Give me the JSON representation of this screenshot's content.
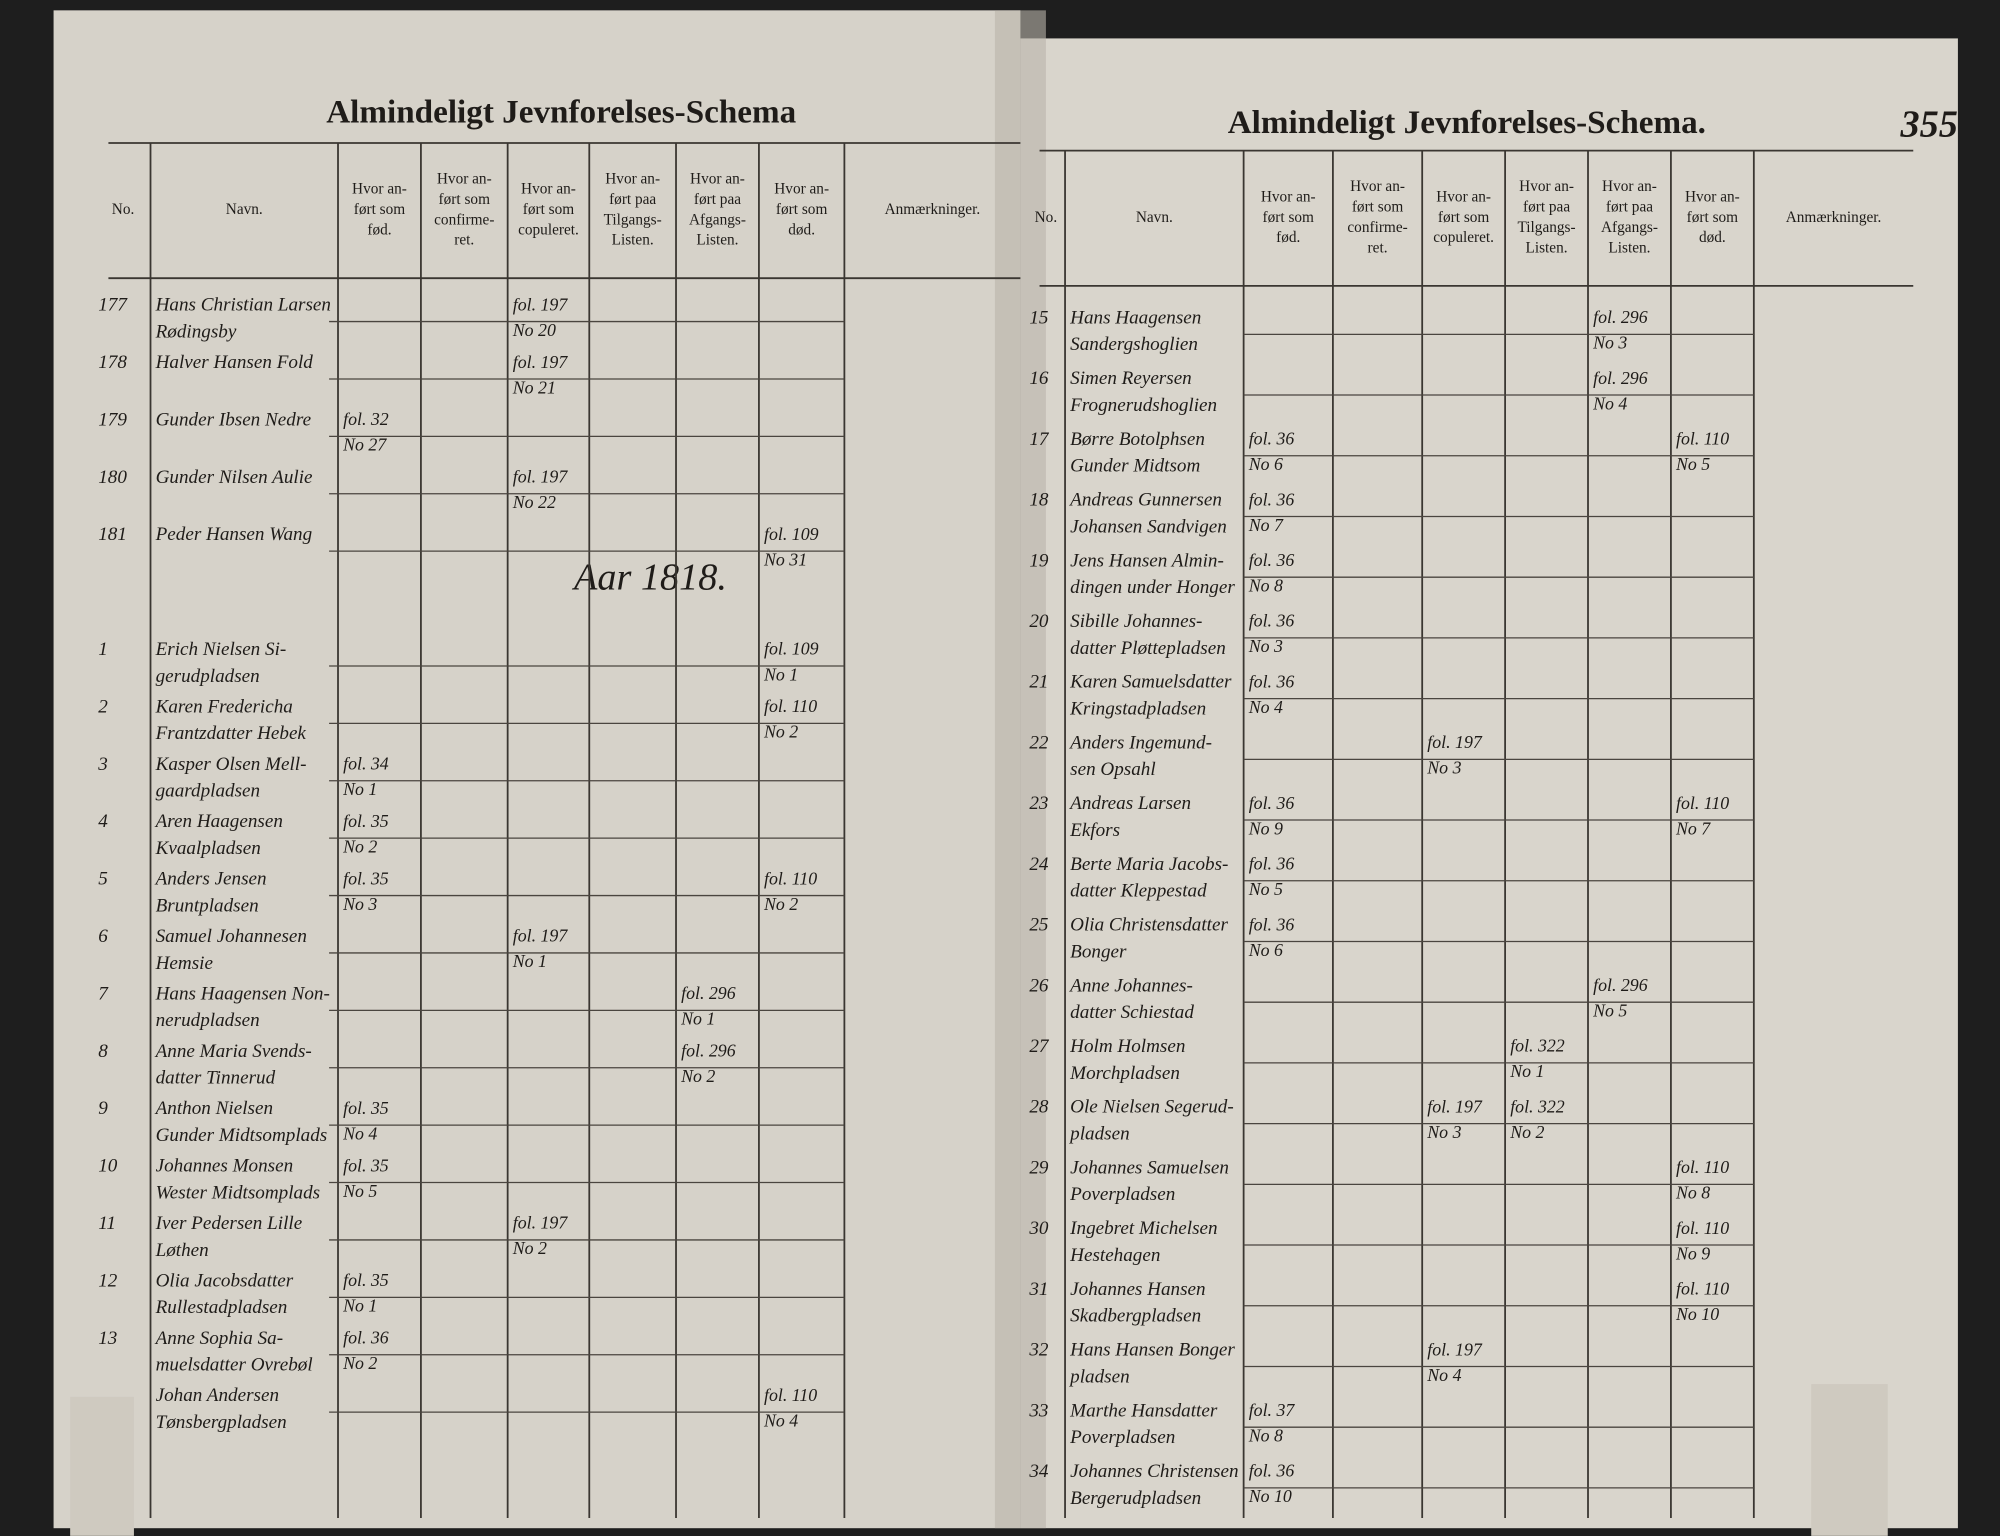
{
  "left_page": {
    "title": "Almindeligt Jevnforelses-Schema",
    "columns": [
      {
        "lines": [
          "No."
        ]
      },
      {
        "lines": [
          "Navn."
        ]
      },
      {
        "lines": [
          "Hvor an-",
          "ført som",
          "fød."
        ]
      },
      {
        "lines": [
          "Hvor an-",
          "ført som",
          "confirme-",
          "ret."
        ]
      },
      {
        "lines": [
          "Hvor an-",
          "ført som",
          "copuleret."
        ]
      },
      {
        "lines": [
          "Hvor an-",
          "ført paa",
          "Tilgangs-",
          "Listen."
        ]
      },
      {
        "lines": [
          "Hvor an-",
          "ført paa",
          "Afgangs-",
          "Listen."
        ]
      },
      {
        "lines": [
          "Hvor an-",
          "ført som",
          "død."
        ]
      },
      {
        "lines": [
          "Anmærkninger."
        ]
      }
    ],
    "year_note": "Aar 1818.",
    "rows": [
      {
        "no": "177",
        "name": [
          "Hans Christian Larsen",
          "Rødingsby"
        ],
        "entries": {
          "cop": [
            "fol. 197",
            "No 20"
          ]
        }
      },
      {
        "no": "178",
        "name": [
          "Halver Hansen Fold"
        ],
        "entries": {
          "cop": [
            "fol. 197",
            "No 21"
          ]
        }
      },
      {
        "no": "179",
        "name": [
          "Gunder Ibsen Nedre"
        ],
        "entries": {
          "fod": [
            "fol. 32",
            "No 27"
          ]
        }
      },
      {
        "no": "180",
        "name": [
          "Gunder Nilsen Aulie"
        ],
        "entries": {
          "cop": [
            "fol. 197",
            "No 22"
          ]
        }
      },
      {
        "no": "181",
        "name": [
          "Peder Hansen Wang"
        ],
        "entries": {
          "dod": [
            "fol. 109",
            "No 31"
          ]
        }
      },
      {
        "no": "1",
        "name": [
          "Erich Nielsen Si-",
          "gerudpladsen"
        ],
        "entries": {
          "dod": [
            "fol. 109",
            "No 1"
          ]
        }
      },
      {
        "no": "2",
        "name": [
          "Karen Fredericha",
          "Frantzdatter Hebek"
        ],
        "entries": {
          "dod": [
            "fol. 110",
            "No 2"
          ]
        }
      },
      {
        "no": "3",
        "name": [
          "Kasper Olsen Mell-",
          "gaardpladsen"
        ],
        "entries": {
          "fod": [
            "fol. 34",
            "No 1"
          ]
        }
      },
      {
        "no": "4",
        "name": [
          "Aren Haagensen",
          "Kvaalpladsen"
        ],
        "entries": {
          "fod": [
            "fol. 35",
            "No 2"
          ]
        }
      },
      {
        "no": "5",
        "name": [
          "Anders Jensen",
          "Bruntpladsen"
        ],
        "entries": {
          "fod": [
            "fol. 35",
            "No 3"
          ],
          "dod": [
            "fol. 110",
            "No 2"
          ]
        }
      },
      {
        "no": "6",
        "name": [
          "Samuel Johannesen",
          "Hemsie"
        ],
        "entries": {
          "cop": [
            "fol. 197",
            "No 1"
          ]
        }
      },
      {
        "no": "7",
        "name": [
          "Hans Haagensen Non-",
          "nerudpladsen"
        ],
        "entries": {
          "afg": [
            "fol. 296",
            "No 1"
          ]
        }
      },
      {
        "no": "8",
        "name": [
          "Anne Maria Svends-",
          "datter Tinnerud"
        ],
        "entries": {
          "afg": [
            "fol. 296",
            "No 2"
          ]
        }
      },
      {
        "no": "9",
        "name": [
          "Anthon Nielsen",
          "Gunder Midtsomplads"
        ],
        "entries": {
          "fod": [
            "fol. 35",
            "No 4"
          ]
        }
      },
      {
        "no": "10",
        "name": [
          "Johannes Monsen",
          "Wester Midtsomplads"
        ],
        "entries": {
          "fod": [
            "fol. 35",
            "No 5"
          ]
        }
      },
      {
        "no": "11",
        "name": [
          "Iver Pedersen Lille",
          "Løthen"
        ],
        "entries": {
          "cop": [
            "fol. 197",
            "No 2"
          ]
        }
      },
      {
        "no": "12",
        "name": [
          "Olia Jacobsdatter",
          "Rullestadpladsen"
        ],
        "entries": {
          "fod": [
            "fol. 35",
            "No 1"
          ]
        }
      },
      {
        "no": "13",
        "name": [
          "Anne Sophia Sa-",
          "muelsdatter Ovrebøl"
        ],
        "entries": {
          "fod": [
            "fol. 36",
            "No 2"
          ]
        }
      },
      {
        "name": [
          "Johan Andersen",
          "Tønsbergpladsen"
        ],
        "entries": {
          "dod": [
            "fol. 110",
            "No 4"
          ]
        }
      }
    ]
  },
  "right_page": {
    "title": "Almindeligt Jevnforelses-Schema.",
    "page_number": "355",
    "columns": [
      {
        "lines": [
          "No."
        ]
      },
      {
        "lines": [
          "Navn."
        ]
      },
      {
        "lines": [
          "Hvor an-",
          "ført som",
          "fød."
        ]
      },
      {
        "lines": [
          "Hvor an-",
          "ført som",
          "confirme-",
          "ret."
        ]
      },
      {
        "lines": [
          "Hvor an-",
          "ført som",
          "copuleret."
        ]
      },
      {
        "lines": [
          "Hvor an-",
          "ført paa",
          "Tilgangs-",
          "Listen."
        ]
      },
      {
        "lines": [
          "Hvor an-",
          "ført paa",
          "Afgangs-",
          "Listen."
        ]
      },
      {
        "lines": [
          "Hvor an-",
          "ført som",
          "død."
        ]
      },
      {
        "lines": [
          "Anmærkninger."
        ]
      }
    ],
    "rows": [
      {
        "no": "15",
        "name": [
          "Hans Haagensen",
          "Sandergshoglien"
        ],
        "entries": {
          "afg": [
            "fol. 296",
            "No 3"
          ]
        }
      },
      {
        "no": "16",
        "name": [
          "Simen Reyersen",
          "Frognerudshoglien"
        ],
        "entries": {
          "afg": [
            "fol. 296",
            "No 4"
          ]
        }
      },
      {
        "no": "17",
        "name": [
          "Børre Botolphsen",
          "Gunder Midtsom"
        ],
        "entries": {
          "fod": [
            "fol. 36",
            "No 6"
          ],
          "dod": [
            "fol. 110",
            "No 5"
          ]
        }
      },
      {
        "no": "18",
        "name": [
          "Andreas Gunnersen",
          "Johansen Sandvigen"
        ],
        "entries": {
          "fod": [
            "fol. 36",
            "No 7"
          ]
        }
      },
      {
        "no": "19",
        "name": [
          "Jens Hansen Almin-",
          "dingen under Honger"
        ],
        "entries": {
          "fod": [
            "fol. 36",
            "No 8"
          ]
        }
      },
      {
        "no": "20",
        "name": [
          "Sibille Johannes-",
          "datter Pløttepladsen"
        ],
        "entries": {
          "fod": [
            "fol. 36",
            "No 3"
          ]
        }
      },
      {
        "no": "21",
        "name": [
          "Karen Samuelsdatter",
          "Kringstadpladsen"
        ],
        "entries": {
          "fod": [
            "fol. 36",
            "No 4"
          ]
        }
      },
      {
        "no": "22",
        "name": [
          "Anders Ingemund-",
          "sen Opsahl"
        ],
        "entries": {
          "cop": [
            "fol. 197",
            "No 3"
          ]
        }
      },
      {
        "no": "23",
        "name": [
          "Andreas Larsen",
          "Ekfors"
        ],
        "entries": {
          "fod": [
            "fol. 36",
            "No 9"
          ],
          "dod": [
            "fol. 110",
            "No 7"
          ]
        }
      },
      {
        "no": "24",
        "name": [
          "Berte Maria Jacobs-",
          "datter Kleppestad"
        ],
        "entries": {
          "fod": [
            "fol. 36",
            "No 5"
          ]
        }
      },
      {
        "no": "25",
        "name": [
          "Olia Christensdatter",
          "Bonger"
        ],
        "entries": {
          "fod": [
            "fol. 36",
            "No 6"
          ]
        }
      },
      {
        "no": "26",
        "name": [
          "Anne Johannes-",
          "datter Schiestad"
        ],
        "entries": {
          "afg": [
            "fol. 296",
            "No 5"
          ]
        }
      },
      {
        "no": "27",
        "name": [
          "Holm Holmsen",
          "Morchpladsen"
        ],
        "entries": {
          "tilg": [
            "fol. 322",
            "No 1"
          ]
        }
      },
      {
        "no": "28",
        "name": [
          "Ole Nielsen Segerud-",
          "pladsen"
        ],
        "entries": {
          "cop": [
            "fol. 197",
            "No 3"
          ],
          "tilg": [
            "fol. 322",
            "No 2"
          ]
        }
      },
      {
        "no": "29",
        "name": [
          "Johannes Samuelsen",
          "Poverpladsen"
        ],
        "entries": {
          "dod": [
            "fol. 110",
            "No 8"
          ]
        }
      },
      {
        "no": "30",
        "name": [
          "Ingebret Michelsen",
          "Hestehagen"
        ],
        "entries": {
          "dod": [
            "fol. 110",
            "No 9"
          ]
        }
      },
      {
        "no": "31",
        "name": [
          "Johannes Hansen",
          "Skadbergpladsen"
        ],
        "entries": {
          "dod": [
            "fol. 110",
            "No 10"
          ]
        }
      },
      {
        "no": "32",
        "name": [
          "Hans Hansen Bonger",
          "pladsen"
        ],
        "entries": {
          "cop": [
            "fol. 197",
            "No 4"
          ]
        }
      },
      {
        "no": "33",
        "name": [
          "Marthe Hansdatter",
          "Poverpladsen"
        ],
        "entries": {
          "fod": [
            "fol. 37",
            "No 8"
          ]
        }
      },
      {
        "no": "34",
        "name": [
          "Johannes Christensen",
          "Bergerudpladsen"
        ],
        "entries": {
          "fod": [
            "fol. 36",
            "No 10"
          ]
        }
      }
    ]
  }
}
